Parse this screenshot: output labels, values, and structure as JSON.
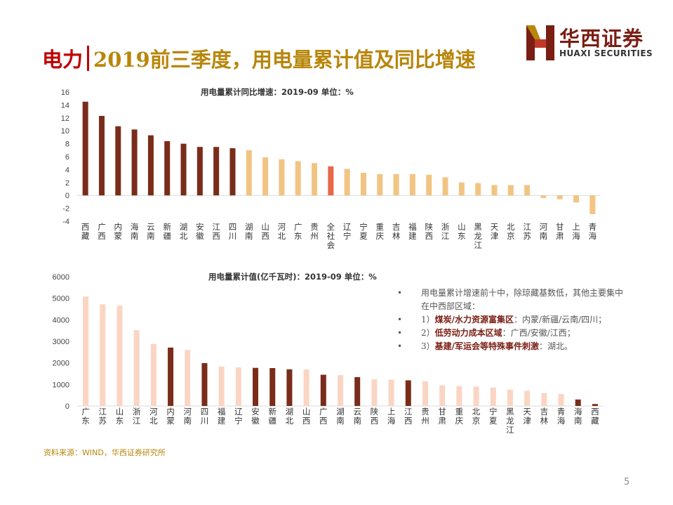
{
  "header": {
    "title_part1": "电力",
    "title_part2": "2019前三季度，用电量累计值及同比增速"
  },
  "logo": {
    "cn": "华西证券",
    "en": "HUAXI SECURITIES"
  },
  "colors": {
    "dark": "#7a2c1a",
    "light": "#f2c483",
    "highlight": "#e8684a",
    "pale": "#fbd5c4",
    "red": "#c00000",
    "gold": "#b8860b"
  },
  "chart_data": [
    {
      "type": "bar",
      "title": "用电量累计同比增速：2019-09 单位：%",
      "categories": [
        "西藏",
        "广西",
        "内蒙",
        "海南",
        "云南",
        "新疆",
        "湖北",
        "安徽",
        "江西",
        "四川",
        "湖南",
        "山西",
        "河北",
        "广东",
        "贵州",
        "全社会",
        "辽宁",
        "宁夏",
        "重庆",
        "吉林",
        "福建",
        "陕西",
        "浙江",
        "山东",
        "黑龙江",
        "天津",
        "北京",
        "江苏",
        "河南",
        "甘肃",
        "上海",
        "青海"
      ],
      "values": [
        14.5,
        12.3,
        10.7,
        10.2,
        9.3,
        8.4,
        8.0,
        7.5,
        7.5,
        7.3,
        7.0,
        5.9,
        5.6,
        5.3,
        5.0,
        4.5,
        4.1,
        3.5,
        3.3,
        3.3,
        3.3,
        3.2,
        2.8,
        2.0,
        1.9,
        1.6,
        1.6,
        1.6,
        -0.4,
        -0.6,
        -1.1,
        -2.9
      ],
      "bar_colors": [
        "dark",
        "dark",
        "dark",
        "dark",
        "dark",
        "dark",
        "dark",
        "dark",
        "dark",
        "dark",
        "light",
        "light",
        "light",
        "light",
        "light",
        "highlight",
        "light",
        "light",
        "light",
        "light",
        "light",
        "light",
        "light",
        "light",
        "light",
        "light",
        "light",
        "light",
        "light",
        "light",
        "light",
        "light"
      ],
      "yticks": [
        16,
        14,
        12,
        10,
        8,
        6,
        4,
        2,
        0,
        -2,
        -4
      ],
      "ylim": [
        -4,
        16
      ],
      "grid": false
    },
    {
      "type": "bar",
      "title": "用电量累计值(亿千瓦时)：2019-09 单位：%",
      "categories": [
        "广东",
        "江苏",
        "山东",
        "浙江",
        "河北",
        "内蒙",
        "河南",
        "四川",
        "福建",
        "辽宁",
        "安徽",
        "新疆",
        "湖北",
        "山西",
        "广西",
        "湖南",
        "云南",
        "陕西",
        "上海",
        "江西",
        "贵州",
        "甘肃",
        "重庆",
        "北京",
        "宁夏",
        "黑龙江",
        "天津",
        "吉林",
        "青海",
        "海南",
        "西藏"
      ],
      "values": [
        5080,
        4720,
        4660,
        3520,
        2880,
        2710,
        2600,
        1990,
        1830,
        1790,
        1770,
        1760,
        1700,
        1690,
        1450,
        1430,
        1340,
        1240,
        1220,
        1190,
        1150,
        960,
        920,
        900,
        860,
        760,
        700,
        600,
        560,
        300,
        90
      ],
      "bar_colors": [
        "pale",
        "pale",
        "pale",
        "pale",
        "pale",
        "dark",
        "pale",
        "dark",
        "pale",
        "pale",
        "dark",
        "dark",
        "dark",
        "pale",
        "dark",
        "pale",
        "dark",
        "pale",
        "pale",
        "dark",
        "pale",
        "pale",
        "pale",
        "pale",
        "pale",
        "pale",
        "pale",
        "pale",
        "pale",
        "dark",
        "dark"
      ],
      "yticks": [
        6000,
        5000,
        4000,
        3000,
        2000,
        1000,
        0
      ],
      "ylim": [
        0,
        6000
      ],
      "grid": false
    }
  ],
  "notes": [
    {
      "bullet": "•",
      "text": "用电量累计增速前十中，除琼藏基数低，其他主要集中在中西部区域：",
      "hl": "",
      "rest": ""
    },
    {
      "bullet": "•",
      "text": "1）",
      "hl": "煤炭/水力资源富集区",
      "rest": "：内蒙/新疆/云南/四川；"
    },
    {
      "bullet": "•",
      "text": "2）",
      "hl": "低劳动力成本区域",
      "rest": "：广西/安徽/江西；"
    },
    {
      "bullet": "•",
      "text": "3）",
      "hl": "基建/军运会等特殊事件刺激",
      "rest": "：湖北。"
    }
  ],
  "footer": {
    "source": "资料来源：WIND，华西证券研究所",
    "page": "5"
  }
}
